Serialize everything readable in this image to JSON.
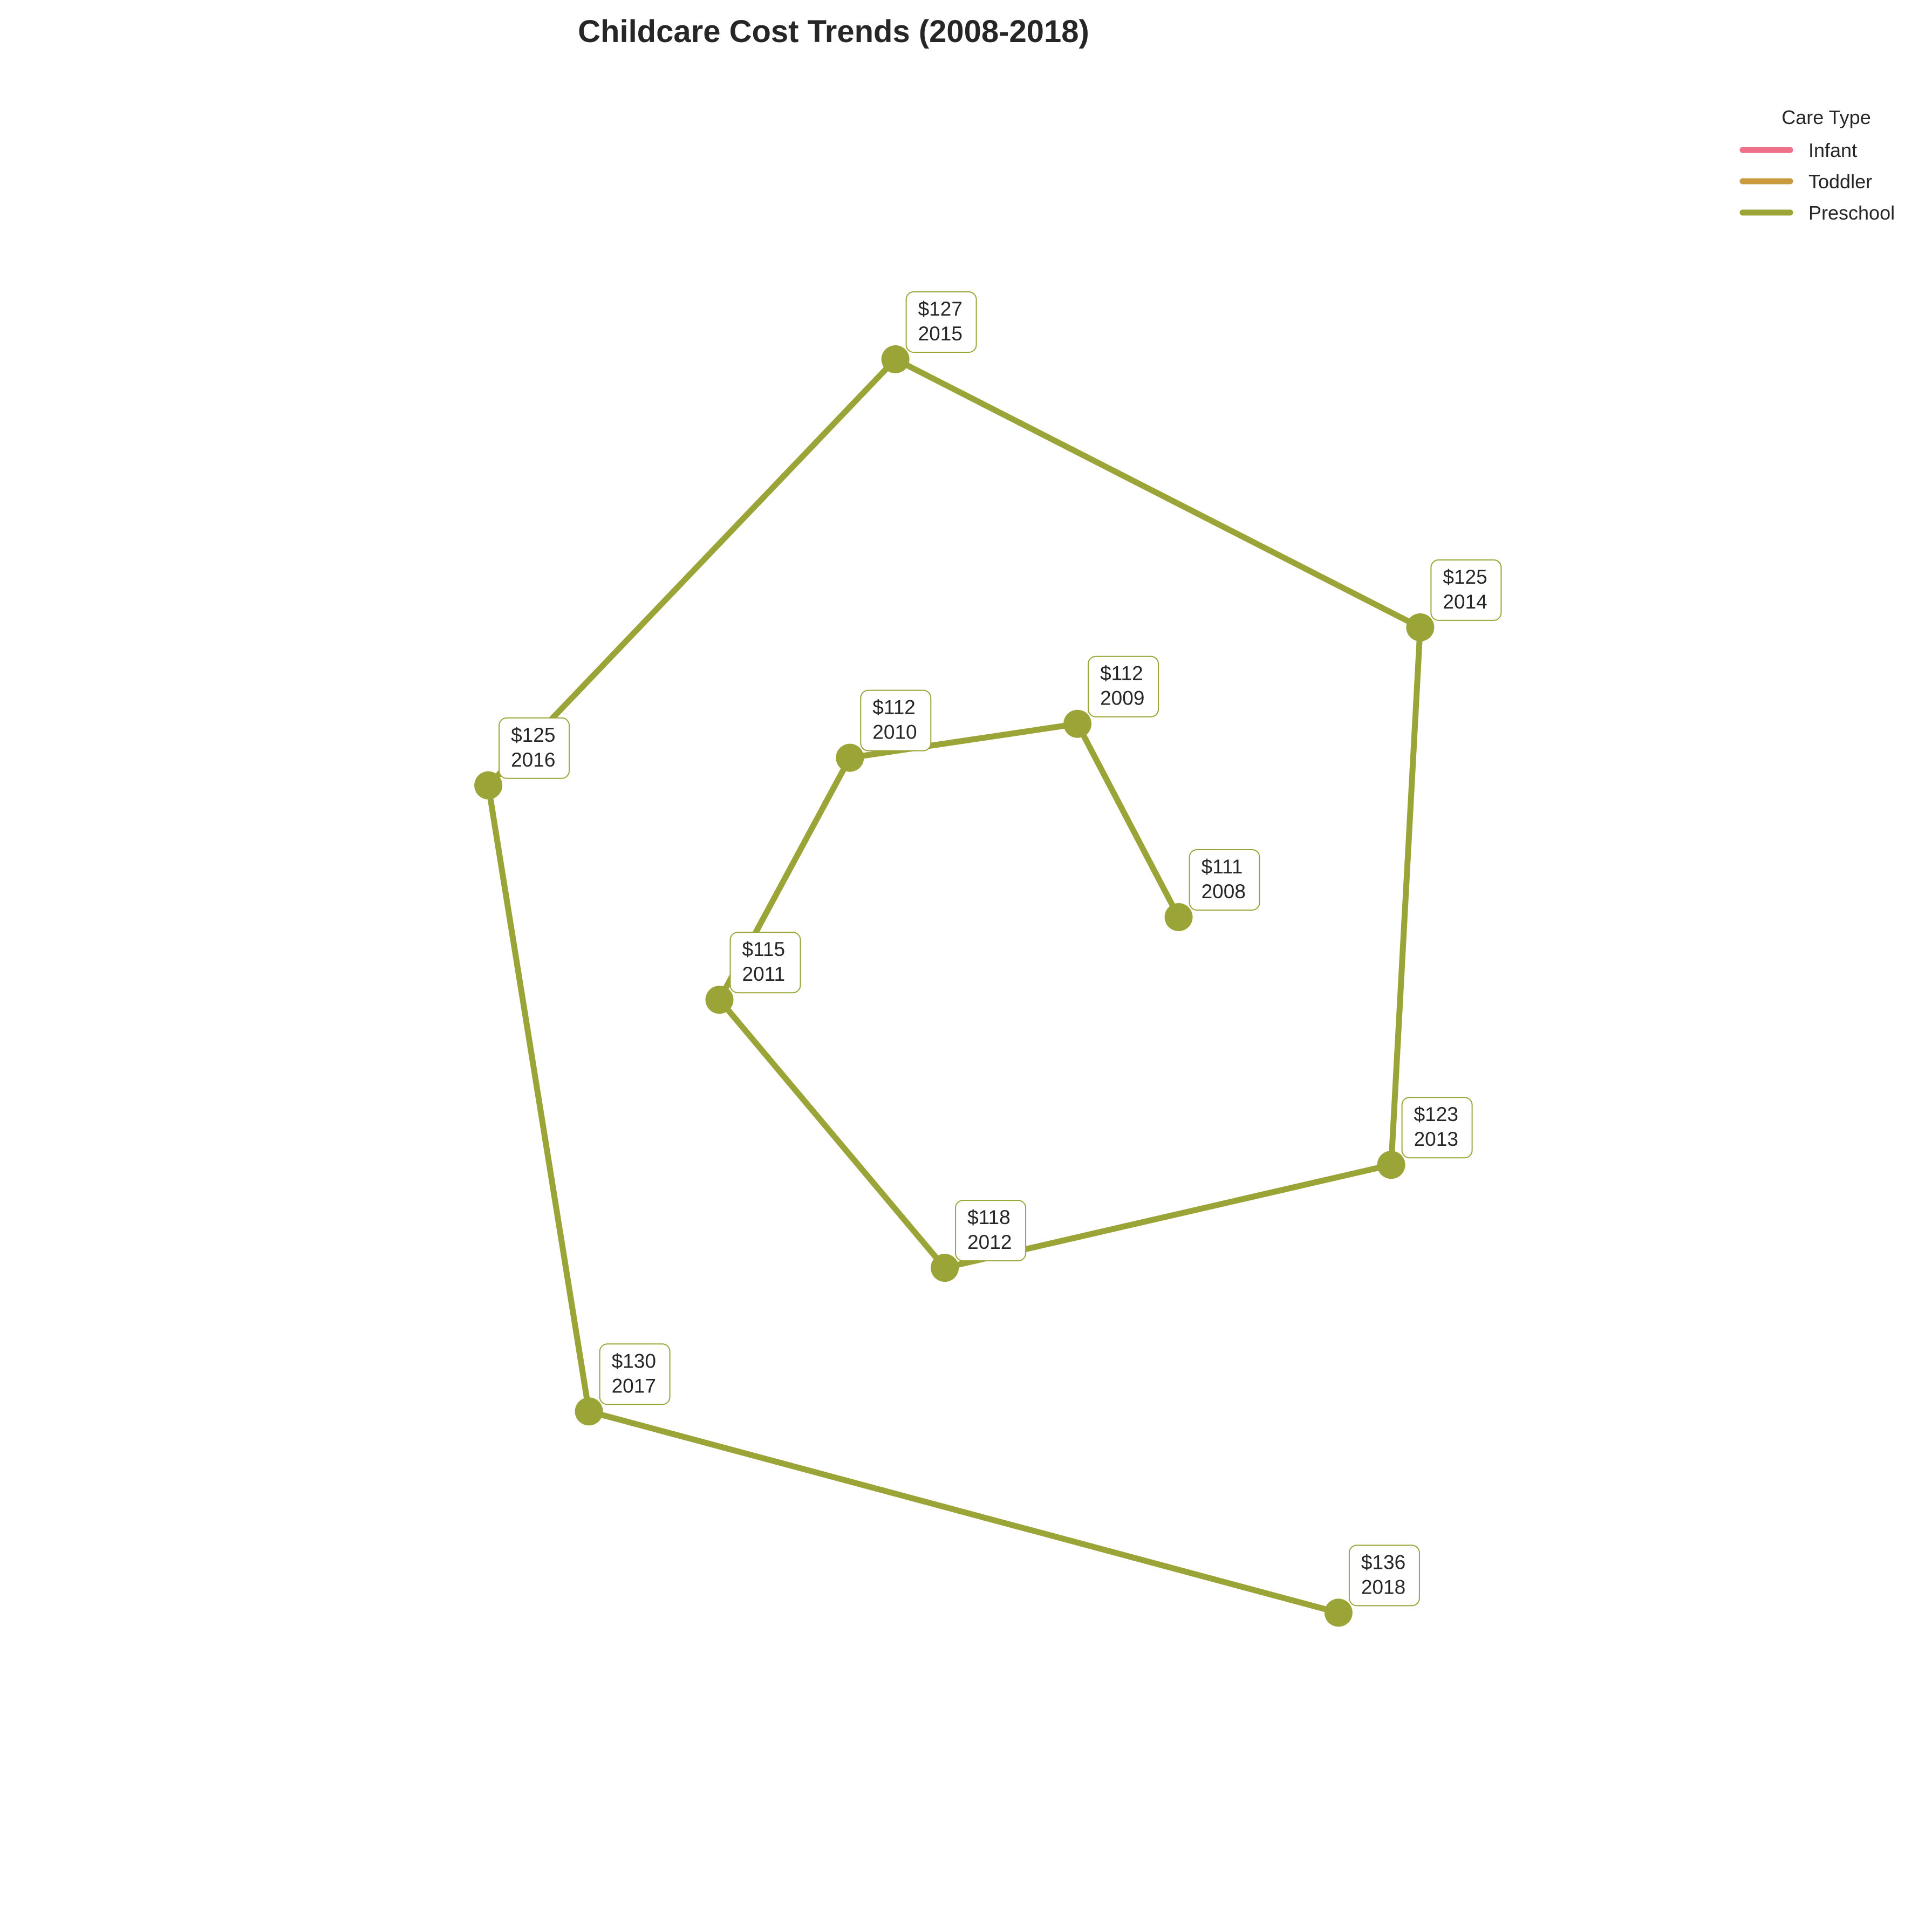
{
  "chart_data": {
    "type": "line",
    "title": "Childcare Cost Trends (2008-2018)",
    "legend": {
      "title": "Care Type",
      "placement": "top-right",
      "entries": [
        {
          "name": "Infant",
          "color": "#f0708a"
        },
        {
          "name": "Toddler",
          "color": "#c99a3e"
        },
        {
          "name": "Preschool",
          "color": "#9aa437"
        }
      ]
    },
    "series": [
      {
        "name": "Preschool",
        "color": "#9aa437",
        "points": [
          {
            "year": 2008,
            "value": 111,
            "label": "$111"
          },
          {
            "year": 2009,
            "value": 112,
            "label": "$112"
          },
          {
            "year": 2010,
            "value": 112,
            "label": "$112"
          },
          {
            "year": 2011,
            "value": 115,
            "label": "$115"
          },
          {
            "year": 2012,
            "value": 118,
            "label": "$118"
          },
          {
            "year": 2013,
            "value": 123,
            "label": "$123"
          },
          {
            "year": 2014,
            "value": 125,
            "label": "$125"
          },
          {
            "year": 2015,
            "value": 127,
            "label": "$127"
          },
          {
            "year": 2016,
            "value": 125,
            "label": "$125"
          },
          {
            "year": 2017,
            "value": 130,
            "label": "$130"
          },
          {
            "year": 2018,
            "value": 136,
            "label": "$136"
          }
        ]
      }
    ],
    "grid": false
  }
}
